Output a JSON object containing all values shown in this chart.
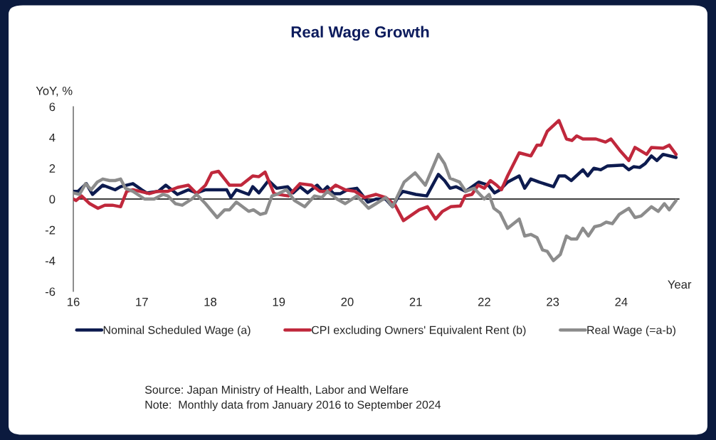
{
  "chart_data": {
    "type": "line",
    "title": "Real Wage Growth",
    "ylabel": "YoY, %",
    "xlabel": "Year",
    "xlim": [
      16,
      24.85
    ],
    "xticks": [
      16,
      17,
      18,
      19,
      20,
      21,
      22,
      23,
      24
    ],
    "ylim": [
      -6,
      6
    ],
    "yticks": [
      -6,
      -4,
      -2,
      0,
      2,
      4,
      6
    ],
    "grid": false,
    "legend": "bottom",
    "marker": "none",
    "line_style": "solid",
    "ref_lines": [
      {
        "axis": "y",
        "value": 0,
        "color": "#000000",
        "line_style": "solid"
      }
    ],
    "annotations": [
      "Source: Japan Ministry of Health, Labor and Welfare",
      "Note:  Monthly data from January 2016 to September 2024"
    ],
    "series": [
      {
        "name": "Nominal Scheduled Wage (a)",
        "color": "#0d1b4f",
        "x": [
          16.0,
          16.07,
          16.19,
          16.28,
          16.43,
          16.61,
          16.69,
          16.87,
          17.0,
          17.07,
          17.24,
          17.35,
          17.52,
          17.68,
          17.8,
          17.93,
          18.24,
          18.3,
          18.38,
          18.56,
          18.62,
          18.71,
          18.85,
          18.97,
          19.13,
          19.21,
          19.31,
          19.42,
          19.56,
          19.64,
          19.71,
          19.8,
          19.9,
          20.0,
          20.14,
          20.3,
          20.42,
          20.56,
          20.66,
          20.75,
          20.81,
          21.0,
          21.16,
          21.33,
          21.42,
          21.5,
          21.59,
          21.73,
          21.92,
          22.06,
          22.15,
          22.23,
          22.34,
          22.51,
          22.59,
          22.68,
          22.8,
          23.01,
          23.09,
          23.18,
          23.27,
          23.44,
          23.51,
          23.6,
          23.7,
          23.8,
          24.03,
          24.11,
          24.18,
          24.27,
          24.35,
          24.44,
          24.52,
          24.61,
          24.8
        ],
        "values": [
          0.5,
          0.5,
          1.0,
          0.3,
          0.9,
          0.6,
          0.8,
          1.0,
          0.6,
          0.4,
          0.5,
          0.9,
          0.3,
          0.6,
          0.4,
          0.6,
          0.6,
          0.1,
          0.6,
          0.3,
          0.8,
          0.4,
          1.2,
          0.7,
          0.8,
          0.4,
          0.8,
          0.4,
          0.9,
          0.5,
          0.8,
          0.35,
          0.35,
          0.6,
          0.7,
          -0.2,
          0.0,
          0.0,
          -0.5,
          0.2,
          0.5,
          0.3,
          0.2,
          1.6,
          1.2,
          0.7,
          0.8,
          0.5,
          1.1,
          0.9,
          0.4,
          0.6,
          1.1,
          1.5,
          0.7,
          1.3,
          1.1,
          0.8,
          1.5,
          1.5,
          1.2,
          1.9,
          1.5,
          2.0,
          1.9,
          2.15,
          2.2,
          1.9,
          2.1,
          2.05,
          2.3,
          2.8,
          2.5,
          2.9,
          2.7
        ]
      },
      {
        "name": "CPI excluding Owners' Equivalent Rent (b)",
        "color": "#c0283c",
        "x": [
          16.0,
          16.04,
          16.12,
          16.24,
          16.36,
          16.46,
          16.57,
          16.69,
          16.78,
          16.87,
          16.97,
          17.11,
          17.23,
          17.38,
          17.52,
          17.68,
          17.8,
          17.93,
          18.02,
          18.12,
          18.28,
          18.45,
          18.62,
          18.71,
          18.8,
          18.93,
          19.07,
          19.14,
          19.31,
          19.48,
          19.6,
          19.72,
          19.83,
          19.97,
          20.11,
          20.25,
          20.42,
          20.56,
          20.7,
          20.82,
          21.05,
          21.17,
          21.29,
          21.39,
          21.51,
          21.65,
          21.72,
          21.82,
          21.91,
          22.0,
          22.09,
          22.18,
          22.25,
          22.3,
          22.34,
          22.51,
          22.68,
          22.77,
          22.83,
          22.92,
          23.09,
          23.2,
          23.28,
          23.35,
          23.44,
          23.54,
          23.63,
          23.77,
          23.85,
          23.99,
          24.11,
          24.2,
          24.37,
          24.44,
          24.61,
          24.7,
          24.8
        ],
        "values": [
          0.0,
          -0.1,
          0.2,
          -0.3,
          -0.6,
          -0.4,
          -0.4,
          -0.5,
          0.5,
          0.6,
          0.5,
          0.35,
          0.5,
          0.5,
          0.75,
          0.9,
          0.35,
          0.9,
          1.7,
          1.8,
          0.9,
          0.9,
          1.5,
          1.45,
          1.75,
          0.35,
          0.25,
          0.2,
          1.0,
          0.9,
          0.5,
          0.5,
          0.9,
          0.6,
          0.5,
          0.1,
          0.3,
          0.1,
          -0.4,
          -1.4,
          -0.7,
          -0.5,
          -1.3,
          -0.8,
          -0.5,
          -0.45,
          0.2,
          0.3,
          0.9,
          0.7,
          1.2,
          0.9,
          0.6,
          1.1,
          1.5,
          3.0,
          2.8,
          3.5,
          3.5,
          4.4,
          5.1,
          3.9,
          3.8,
          4.1,
          3.9,
          3.9,
          3.9,
          3.7,
          3.9,
          3.1,
          2.5,
          3.35,
          2.9,
          3.35,
          3.3,
          3.5,
          2.9
        ]
      },
      {
        "name": "Real Wage (=a-b)",
        "color": "#8c8c8c",
        "x": [
          16.0,
          16.09,
          16.18,
          16.26,
          16.35,
          16.43,
          16.53,
          16.61,
          16.69,
          16.76,
          16.87,
          17.04,
          17.18,
          17.31,
          17.38,
          17.49,
          17.59,
          17.73,
          17.8,
          17.93,
          18.1,
          18.21,
          18.28,
          18.38,
          18.56,
          18.63,
          18.73,
          18.81,
          18.9,
          18.97,
          19.11,
          19.23,
          19.38,
          19.52,
          19.63,
          19.71,
          19.85,
          19.97,
          20.14,
          20.31,
          20.42,
          20.56,
          20.66,
          20.83,
          20.99,
          21.14,
          21.33,
          21.42,
          21.5,
          21.64,
          21.73,
          21.85,
          22.0,
          22.07,
          22.14,
          22.23,
          22.34,
          22.51,
          22.59,
          22.68,
          22.77,
          22.85,
          22.92,
          23.01,
          23.11,
          23.2,
          23.27,
          23.35,
          23.44,
          23.52,
          23.61,
          23.7,
          23.78,
          23.87,
          23.97,
          24.11,
          24.2,
          24.29,
          24.44,
          24.54,
          24.63,
          24.7,
          24.8
        ],
        "values": [
          0.4,
          0.3,
          1.0,
          0.6,
          1.1,
          1.3,
          1.2,
          1.2,
          1.3,
          0.7,
          0.5,
          0.0,
          0.0,
          0.3,
          0.2,
          -0.3,
          -0.4,
          0.0,
          0.3,
          -0.3,
          -1.2,
          -0.7,
          -0.7,
          -0.2,
          -0.8,
          -0.7,
          -1.0,
          -0.9,
          0.2,
          0.3,
          0.6,
          -0.1,
          -0.5,
          0.2,
          0.1,
          0.5,
          0.0,
          -0.3,
          0.2,
          -0.6,
          -0.3,
          0.1,
          -0.5,
          1.1,
          1.7,
          0.9,
          2.9,
          2.3,
          1.35,
          1.1,
          0.5,
          0.7,
          0.0,
          0.3,
          -0.6,
          -0.9,
          -1.9,
          -1.3,
          -2.4,
          -2.3,
          -2.5,
          -3.3,
          -3.4,
          -4.0,
          -3.6,
          -2.4,
          -2.6,
          -2.6,
          -1.9,
          -2.4,
          -1.8,
          -1.7,
          -1.5,
          -1.6,
          -1.0,
          -0.6,
          -1.2,
          -1.1,
          -0.5,
          -0.8,
          -0.3,
          -0.7,
          -0.1
        ]
      }
    ]
  }
}
